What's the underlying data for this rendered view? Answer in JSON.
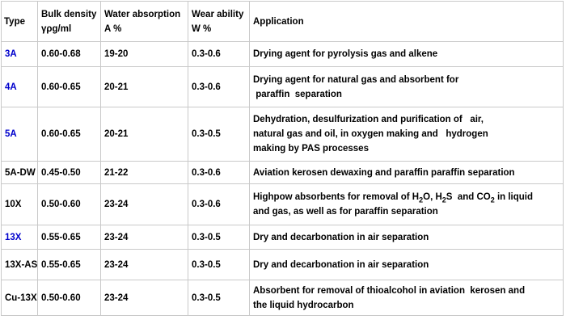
{
  "page": {
    "background_color": "#ffffff",
    "border_color": "#c9c9c9",
    "text_color": "#000000",
    "highlight_type_color": "#0000cc"
  },
  "chart_data": {
    "type": "table",
    "columns": [
      "Type",
      "Bulk density\nγρg/ml",
      "Water absorption\nA %",
      "Wear ability\nW %",
      "Application"
    ],
    "rows": [
      [
        "3A",
        "0.60-0.68",
        "19-20",
        "0.3-0.6",
        "Drying agent for pyrolysis gas and alkene"
      ],
      [
        "4A",
        "0.60-0.65",
        "20-21",
        "0.3-0.6",
        "Drying agent for natural gas and absorbent for\n paraffin  separation"
      ],
      [
        "5A",
        "0.60-0.65",
        "20-21",
        "0.3-0.5",
        "Dehydration, desulfurization and purification of   air,\nnatural gas and oil, in oxygen making and   hydrogen\nmaking by PAS processes"
      ],
      [
        "5A-DW",
        "0.45-0.50",
        "21-22",
        "0.3-0.6",
        "Aviation kerosen dewaxing and paraffin paraffin separation"
      ],
      [
        "10X",
        "0.50-0.60",
        "23-24",
        "0.3-0.6",
        "Highpow absorbents for removal of H2O, H2S  and CO2 in liquid\nand gas, as well as for paraffin separation"
      ],
      [
        "13X",
        "0.55-0.65",
        "23-24",
        "0.3-0.5",
        "Dry and decarbonation in air separation"
      ],
      [
        "13X-AS",
        "0.55-0.65",
        "23-24",
        "0.3-0.5",
        "Dry and decarbonation in air separation"
      ],
      [
        "Cu-13X",
        "0.50-0.60",
        "23-24",
        "0.3-0.5",
        "Absorbent for removal of thioalcohol in aviation  kerosen and\nthe liquid hydrocarbon"
      ]
    ]
  },
  "table": {
    "header": {
      "type": "Type",
      "bulk_density": "Bulk density\nγρg/ml",
      "water_absorption": "Water absorption\nA %",
      "wear_ability": "Wear ability\nW %",
      "application": "Application"
    },
    "rows": [
      {
        "type": "3A",
        "type_highlighted": true,
        "bulk_density": "0.60-0.68",
        "water_absorption": "19-20",
        "wear_ability": "0.3-0.6",
        "application": "Drying agent for pyrolysis gas and alkene"
      },
      {
        "type": "4A",
        "type_highlighted": true,
        "bulk_density": "0.60-0.65",
        "water_absorption": "20-21",
        "wear_ability": "0.3-0.6",
        "application": "Drying agent for natural gas and absorbent for\n paraffin  separation"
      },
      {
        "type": "5A",
        "type_highlighted": true,
        "bulk_density": "0.60-0.65",
        "water_absorption": "20-21",
        "wear_ability": "0.3-0.5",
        "application": "Dehydration, desulfurization and purification of   air,\nnatural gas and oil, in oxygen making and   hydrogen\nmaking by PAS processes"
      },
      {
        "type": "5A-DW",
        "type_highlighted": false,
        "bulk_density": "0.45-0.50",
        "water_absorption": "21-22",
        "wear_ability": "0.3-0.6",
        "application": "Aviation kerosen dewaxing and paraffin paraffin separation"
      },
      {
        "type": "10X",
        "type_highlighted": false,
        "bulk_density": "0.50-0.60",
        "water_absorption": "23-24",
        "wear_ability": "0.3-0.6",
        "application": "Highpow absorbents for removal of H{2}O, H{2}S  and CO{2} in liquid\nand gas, as well as for paraffin separation"
      },
      {
        "type": "13X",
        "type_highlighted": true,
        "bulk_density": "0.55-0.65",
        "water_absorption": "23-24",
        "wear_ability": "0.3-0.5",
        "application": "Dry and decarbonation in air separation"
      },
      {
        "type": "13X-AS",
        "type_highlighted": false,
        "bulk_density": "0.55-0.65",
        "water_absorption": "23-24",
        "wear_ability": "0.3-0.5",
        "application": "Dry and decarbonation in air separation"
      },
      {
        "type": "Cu-13X",
        "type_highlighted": false,
        "bulk_density": "0.50-0.60",
        "water_absorption": "23-24",
        "wear_ability": "0.3-0.5",
        "application": "Absorbent for removal of thioalcohol in aviation  kerosen and\nthe liquid hydrocarbon"
      }
    ]
  }
}
